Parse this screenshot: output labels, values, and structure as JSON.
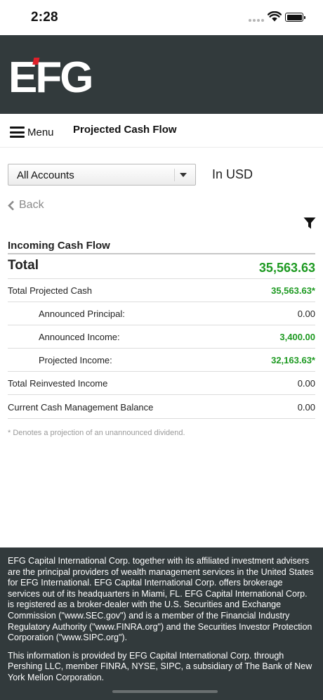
{
  "status_bar": {
    "time": "2:28"
  },
  "brand": {
    "logo_text": "EFG",
    "accent_color": "#e0202a",
    "header_bg": "#323a3c"
  },
  "nav": {
    "menu_label": "Menu",
    "title": "Projected Cash Flow"
  },
  "account": {
    "selected": "All Accounts",
    "currency_label": "In USD"
  },
  "back_label": "Back",
  "cash_flow": {
    "section_title": "Incoming Cash Flow",
    "total_label": "Total",
    "total_value": "35,563.63",
    "rows": [
      {
        "label": "Total Projected Cash",
        "value": "35,563.63*"
      },
      {
        "label": "Announced Principal:",
        "value": "0.00"
      },
      {
        "label": "Announced Income:",
        "value": "3,400.00"
      },
      {
        "label": "Projected Income:",
        "value": "32,163.63*"
      },
      {
        "label": "Total Reinvested Income",
        "value": "0.00"
      },
      {
        "label": "Current Cash Management Balance",
        "value": "0.00"
      }
    ],
    "footnote": "* Denotes a projection of an unannounced dividend.",
    "positive_color": "#1e9a22"
  },
  "footer": {
    "paragraph1": "EFG Capital International Corp. together with its affiliated investment advisers are the principal providers of wealth management services in the United States for EFG International. EFG Capital International Corp. offers brokerage services out of its headquarters in Miami, FL. EFG Capital International Corp. is registered as a broker-dealer with the U.S. Securities and Exchange Commission (\"www.SEC.gov\") and is a member of the Financial Industry Regulatory Authority (\"www.FINRA.org\") and the Securities Investor Protection Corporation (\"www.SIPC.org\").",
    "paragraph2": "This information is provided by EFG Capital International Corp. through Pershing LLC, member FINRA, NYSE, SIPC, a subsidiary of The Bank of New York Mellon Corporation."
  }
}
